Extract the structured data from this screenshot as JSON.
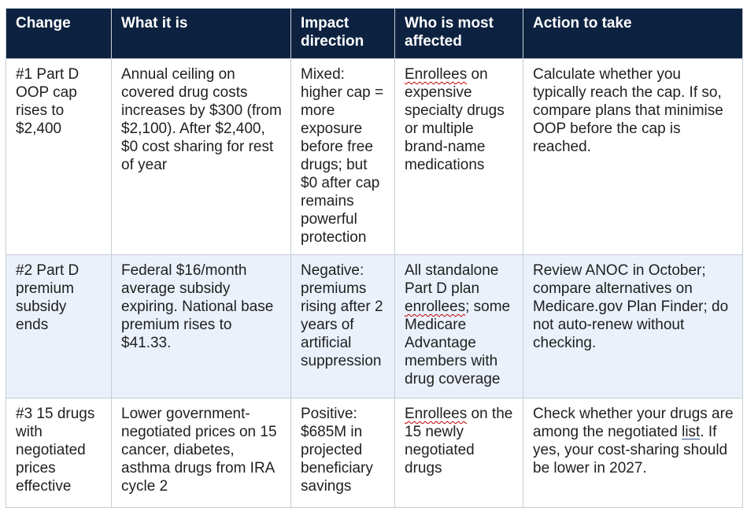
{
  "headers": {
    "change": "Change",
    "what": "What it is",
    "impact": "Impact direction",
    "who": "Who is most affected",
    "action": "Action to take"
  },
  "rows": [
    {
      "change": "#1 Part D OOP cap rises to $2,400",
      "what": "Annual ceiling on covered drug costs increases by $300 (from $2,100). After $2,400, $0 cost sharing for rest of year",
      "impact": "Mixed: higher cap = more exposure before free drugs; but $0 after cap remains powerful protection",
      "who_lead": "Enrollees",
      "who_rest": " on expensive specialty drugs or multiple brand-name medications",
      "action": "Calculate whether you typically reach the cap. If so, compare plans that minimise OOP before the cap is reached."
    },
    {
      "change": "#2 Part D premium subsidy ends",
      "what": "Federal $16/month average subsidy expiring. National base premium rises to $41.33.",
      "impact": "Negative: premiums rising after 2 years of artificial suppression",
      "who_pre": "All standalone Part D plan ",
      "who_mark": "enrollees",
      "who_post": "; some Medicare Advantage members with drug coverage",
      "action": "Review ANOC in October; compare alternatives on Medicare.gov Plan Finder; do not auto-renew without checking."
    },
    {
      "change": "#3 15 drugs with negotiated prices effective",
      "what": "Lower government-negotiated prices on 15 cancer, diabetes, asthma drugs from IRA cycle 2",
      "impact": "Positive: $685M in projected beneficiary savings",
      "who_lead": "Enrollees",
      "who_rest": " on the 15 newly negotiated drugs",
      "action_pre": "Check whether your drugs are among the negotiated ",
      "action_link": "list",
      "action_post": ". If yes, your cost-sharing should be lower in 2027."
    }
  ]
}
